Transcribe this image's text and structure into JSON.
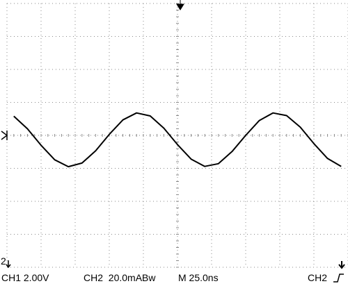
{
  "chart_data": {
    "type": "line",
    "x": [
      0.2,
      0.6,
      1.0,
      1.4,
      1.8,
      2.2,
      2.6,
      3.0,
      3.4,
      3.8,
      4.2,
      4.6,
      5.0,
      5.4,
      5.8,
      6.2,
      6.6,
      7.0,
      7.4,
      7.8,
      8.2,
      8.6,
      9.0,
      9.4,
      9.8
    ],
    "values": [
      0.58,
      0.2,
      -0.3,
      -0.74,
      -0.95,
      -0.84,
      -0.47,
      0.03,
      0.47,
      0.68,
      0.59,
      0.22,
      -0.28,
      -0.72,
      -0.94,
      -0.86,
      -0.49,
      0.0,
      0.45,
      0.68,
      0.6,
      0.25,
      -0.25,
      -0.7,
      -0.94
    ],
    "color": "#000000",
    "xlim": [
      0,
      10
    ],
    "ylim": [
      -4,
      4
    ],
    "grid": true,
    "channel_marker": "2",
    "ch1_scale": "CH1 2.00V",
    "ch2_scale": "CH2  20.0mABw",
    "timebase": "M 25.0ns",
    "trigger_source": "CH2"
  }
}
